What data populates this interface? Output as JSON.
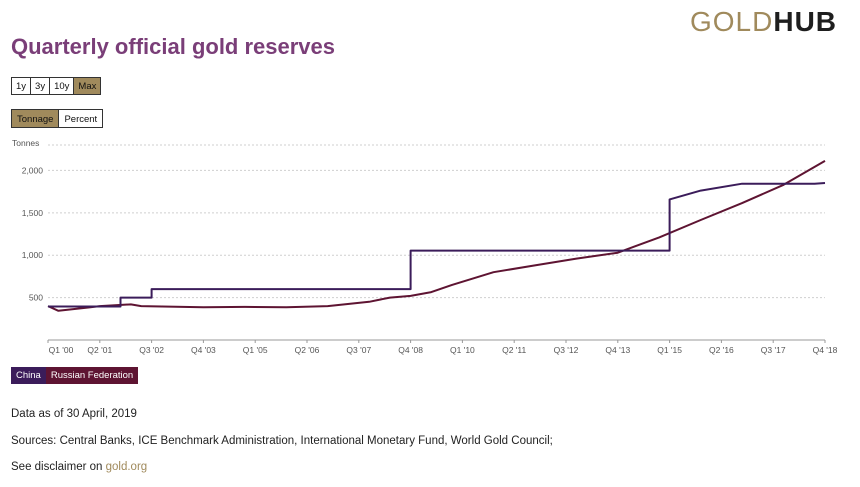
{
  "brand": {
    "gold": "GOLD",
    "hub": "HUB",
    "gold_color": "#a08a5c"
  },
  "title": "Quarterly official gold reserves",
  "range_buttons": [
    {
      "label": "1y",
      "active": false
    },
    {
      "label": "3y",
      "active": false
    },
    {
      "label": "10y",
      "active": false
    },
    {
      "label": "Max",
      "active": true
    }
  ],
  "unit_buttons": [
    {
      "label": "Tonnage",
      "active": true
    },
    {
      "label": "Percent",
      "active": false
    }
  ],
  "chart_data": {
    "type": "line",
    "ylabel": "Tonnes",
    "ylim": [
      0,
      2300
    ],
    "yticks": [
      500,
      1000,
      1500,
      2000
    ],
    "ytick_labels": [
      "500",
      "1,000",
      "1,500",
      "2,000"
    ],
    "x_start": "Q1 '00",
    "x_end": "Q4 '18",
    "xticks": [
      "Q1 '00",
      "Q2 '01",
      "Q3 '02",
      "Q4 '03",
      "Q1 '05",
      "Q2 '06",
      "Q3 '07",
      "Q4 '08",
      "Q1 '10",
      "Q2 '11",
      "Q3 '12",
      "Q4 '13",
      "Q1 '15",
      "Q2 '16",
      "Q3 '17",
      "Q4 '18"
    ],
    "grid": true,
    "series": [
      {
        "name": "China",
        "color": "#3b1c5a",
        "points": [
          [
            "Q1 '00",
            395
          ],
          [
            "Q1 '01",
            395
          ],
          [
            "Q4 '01",
            395
          ],
          [
            "Q4 '01",
            500
          ],
          [
            "Q2 '02",
            500
          ],
          [
            "Q3 '02",
            500
          ],
          [
            "Q3 '02",
            600
          ],
          [
            "Q4 '08",
            600
          ],
          [
            "Q4 '08",
            1054
          ],
          [
            "Q1 '15",
            1054
          ],
          [
            "Q1 '15",
            1658
          ],
          [
            "Q4 '15",
            1762
          ],
          [
            "Q4 '16",
            1843
          ],
          [
            "Q4 '17",
            1843
          ],
          [
            "Q3 '18",
            1843
          ],
          [
            "Q4 '18",
            1852
          ]
        ]
      },
      {
        "name": "Russian Federation",
        "color": "#5e1432",
        "points": [
          [
            "Q1 '00",
            400
          ],
          [
            "Q2 '00",
            345
          ],
          [
            "Q1 '01",
            385
          ],
          [
            "Q2 '01",
            400
          ],
          [
            "Q1 '02",
            420
          ],
          [
            "Q2 '02",
            400
          ],
          [
            "Q4 '03",
            387
          ],
          [
            "Q4 '04",
            390
          ],
          [
            "Q4 '05",
            387
          ],
          [
            "Q4 '06",
            400
          ],
          [
            "Q4 '07",
            450
          ],
          [
            "Q2 '08",
            500
          ],
          [
            "Q4 '08",
            520
          ],
          [
            "Q2 '09",
            565
          ],
          [
            "Q4 '09",
            650
          ],
          [
            "Q4 '10",
            800
          ],
          [
            "Q4 '11",
            880
          ],
          [
            "Q4 '12",
            960
          ],
          [
            "Q4 '13",
            1030
          ],
          [
            "Q4 '14",
            1210
          ],
          [
            "Q4 '15",
            1415
          ],
          [
            "Q4 '16",
            1615
          ],
          [
            "Q4 '17",
            1830
          ],
          [
            "Q4 '18",
            2112
          ]
        ]
      }
    ]
  },
  "legend": [
    {
      "label": "China",
      "color": "#3b1c5a"
    },
    {
      "label": "Russian Federation",
      "color": "#5e1432"
    }
  ],
  "footer": {
    "data_as_of": "Data as of 30 April, 2019",
    "sources": "Sources: Central Banks, ICE Benchmark Administration, International Monetary Fund, World Gold Council;",
    "disclaimer_prefix": "See disclaimer on ",
    "disclaimer_link": "gold.org"
  }
}
